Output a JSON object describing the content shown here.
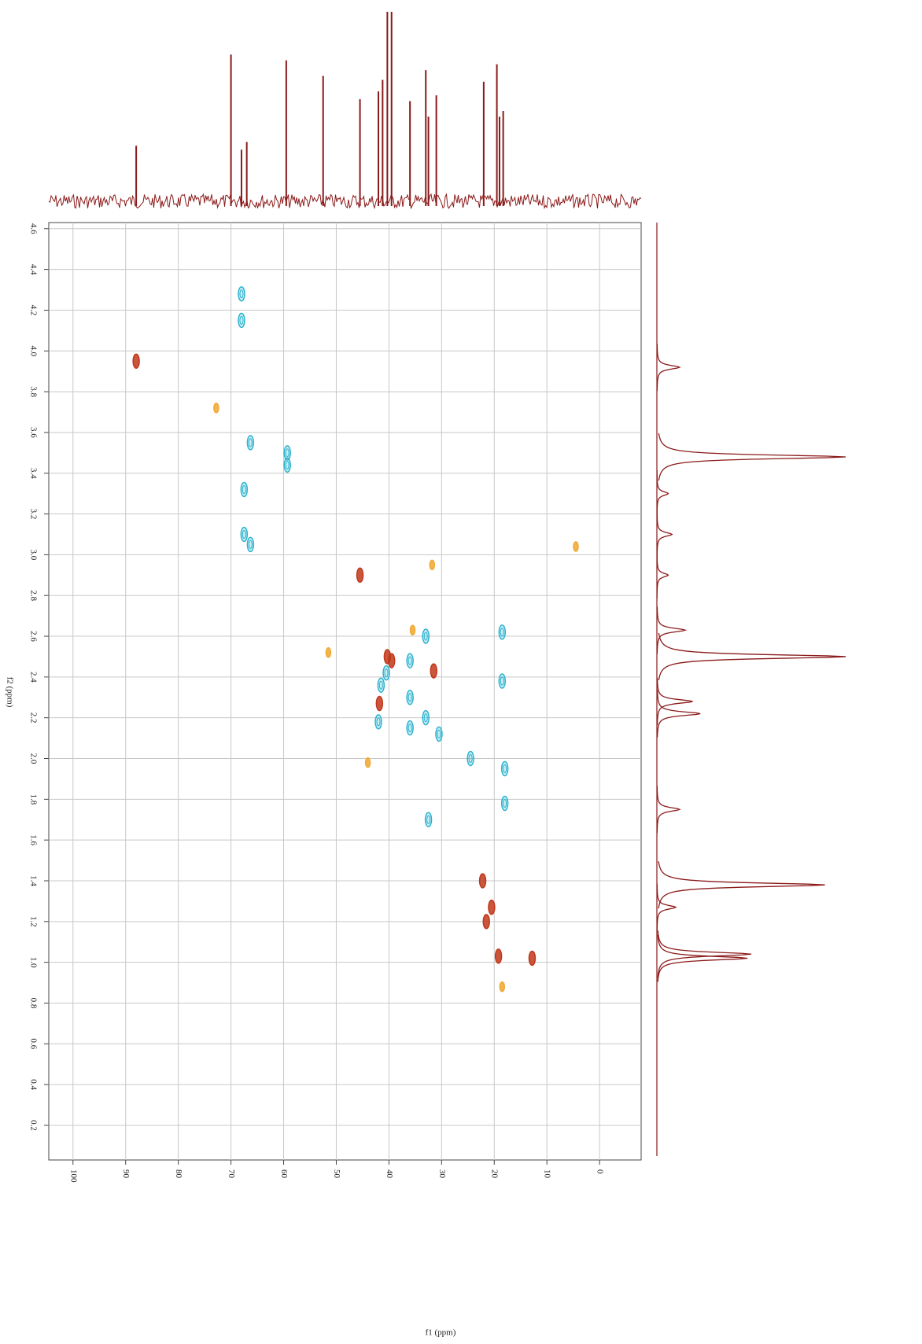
{
  "chart_data": {
    "type": "scatter",
    "x_label": "f1 (ppm)",
    "y_label": "f2 (ppm)",
    "xlim": [
      104.6,
      -7.9
    ],
    "ylim": [
      0.03,
      4.63
    ],
    "xticks": [
      100,
      90,
      80,
      70,
      60,
      50,
      40,
      30,
      20,
      10,
      0
    ],
    "yticks": [
      {
        "value": 0.2,
        "label": "0.2"
      },
      {
        "value": 0.4,
        "label": "0.4"
      },
      {
        "value": 0.6,
        "label": "0.6"
      },
      {
        "value": 0.8,
        "label": "0.8"
      },
      {
        "value": 1,
        "label": "1.0"
      },
      {
        "value": 1.2,
        "label": "1.2"
      },
      {
        "value": 1.4,
        "label": "1.4"
      },
      {
        "value": 1.6,
        "label": "1.6"
      },
      {
        "value": 1.8,
        "label": "1.8"
      },
      {
        "value": 2,
        "label": "2.0"
      },
      {
        "value": 2.2,
        "label": "2.2"
      },
      {
        "value": 2.4,
        "label": "2.4"
      },
      {
        "value": 2.6,
        "label": "2.6"
      },
      {
        "value": 2.8,
        "label": "2.8"
      },
      {
        "value": 3,
        "label": "3.0"
      },
      {
        "value": 3.2,
        "label": "3.2"
      },
      {
        "value": 3.4,
        "label": "3.4"
      },
      {
        "value": 3.6,
        "label": "3.6"
      },
      {
        "value": 3.8,
        "label": "3.8"
      },
      {
        "value": 4,
        "label": "4.0"
      },
      {
        "value": 4.2,
        "label": "4.2"
      },
      {
        "value": 4.4,
        "label": "4.4"
      },
      {
        "value": 4.6,
        "label": "4.6"
      }
    ],
    "grid": true,
    "series": [
      {
        "color": "#2ab3cf",
        "x": [
          68,
          68,
          66.3,
          59.3,
          59.3,
          67.5,
          67.5,
          66.3,
          36,
          33,
          36,
          33,
          36,
          30.5,
          18.5,
          18.5,
          24.5,
          18,
          18,
          32.5,
          40.5,
          42,
          41.5
        ],
        "values": [
          4.28,
          4.15,
          3.55,
          3.5,
          3.44,
          3.32,
          3.1,
          3.05,
          2.48,
          2.6,
          2.3,
          2.2,
          2.15,
          2.12,
          2.62,
          2.38,
          2.0,
          1.95,
          1.78,
          1.7,
          2.42,
          2.18,
          2.36
        ]
      },
      {
        "color": "#c0381b",
        "x": [
          88,
          45.5,
          40.3,
          39.5,
          41.8,
          31.5,
          22.2,
          20.5,
          21.5,
          19.2,
          12.8
        ],
        "values": [
          3.95,
          2.9,
          2.5,
          2.48,
          2.27,
          2.43,
          1.4,
          1.27,
          1.2,
          1.03,
          1.02
        ]
      },
      {
        "color": "#f0a830",
        "x": [
          72.8,
          51.5,
          35.5,
          31.8,
          18.5,
          44,
          4.5
        ],
        "values": [
          3.72,
          2.52,
          2.63,
          2.95,
          0.88,
          1.98,
          3.04
        ]
      }
    ],
    "top_projection": {
      "color": "#8b1a1a",
      "x": [
        88,
        70,
        68,
        67,
        59.5,
        52.5,
        45.5,
        42,
        41.2,
        40.3,
        39.5,
        36,
        33,
        32.5,
        31,
        22,
        19.5,
        19,
        18.3
      ],
      "values": [
        31,
        78,
        29,
        33,
        75,
        67,
        55,
        59,
        65,
        100,
        100,
        54,
        70,
        46,
        57,
        64,
        73,
        46,
        49
      ]
    },
    "side_projection": {
      "color": "#8b1a1a",
      "y": [
        3.92,
        3.48,
        3.3,
        3.1,
        2.9,
        2.63,
        2.5,
        2.28,
        2.22,
        1.75,
        1.38,
        1.27,
        1.04,
        1.02
      ],
      "values": [
        12,
        100,
        6,
        8,
        6,
        15,
        100,
        19,
        23,
        12,
        89,
        10,
        50,
        48
      ]
    }
  }
}
